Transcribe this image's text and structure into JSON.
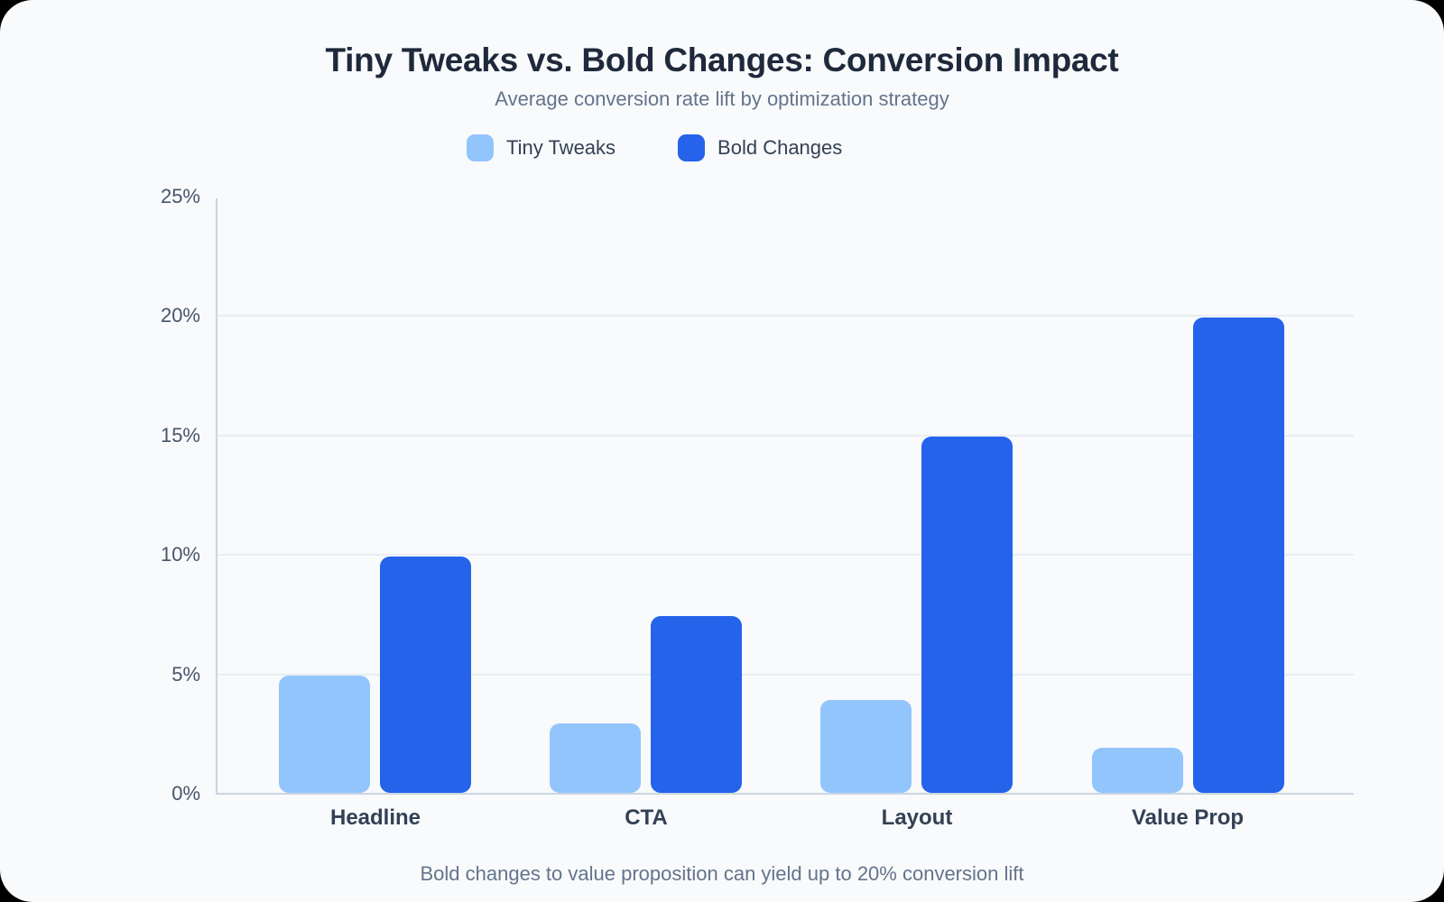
{
  "card": {
    "title": "Tiny Tweaks vs. Bold Changes: Conversion Impact",
    "subtitle": "Average conversion rate lift by optimization strategy",
    "footnote": "Bold changes to value proposition can yield up to 20% conversion lift"
  },
  "colors": {
    "card_background": "#f8fafc",
    "title_text": "#1e293b",
    "muted_text": "#64748b",
    "tick_text": "#475569",
    "category_text": "#334155",
    "axis_line": "#cbd5e1",
    "gridline": "#e9edf3",
    "tiny_tweaks": "#93c5fd",
    "bold_changes": "#2563eb"
  },
  "legend": {
    "items": [
      {
        "label": "Tiny Tweaks",
        "color": "#93c5fd"
      },
      {
        "label": "Bold Changes",
        "color": "#2563eb"
      }
    ]
  },
  "chart_data": {
    "type": "bar",
    "title": "Tiny Tweaks vs. Bold Changes: Conversion Impact",
    "subtitle": "Average conversion rate lift by optimization strategy",
    "categories": [
      "Headline",
      "CTA",
      "Layout",
      "Value Prop"
    ],
    "series": [
      {
        "name": "Tiny Tweaks",
        "color": "#93c5fd",
        "values": [
          4.9,
          2.9,
          3.9,
          1.9
        ]
      },
      {
        "name": "Bold Changes",
        "color": "#2563eb",
        "values": [
          9.9,
          7.4,
          14.9,
          19.9
        ]
      }
    ],
    "xlabel": "",
    "ylabel": "",
    "ylim": [
      0,
      25
    ],
    "yticks": [
      0,
      5,
      10,
      15,
      20,
      25
    ],
    "ytick_labels": [
      "0%",
      "5%",
      "10%",
      "15%",
      "20%",
      "25%"
    ],
    "grid": true,
    "gridline_ticks": [
      5,
      10,
      15,
      20
    ],
    "legend_position": "top",
    "annotation": "Bold changes to value proposition can yield up to 20% conversion lift"
  }
}
